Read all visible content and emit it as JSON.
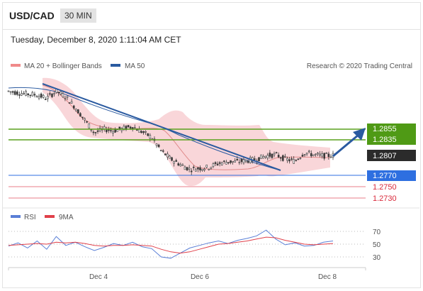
{
  "header": {
    "symbol": "USD/CAD",
    "timeframe": "30 MIN"
  },
  "datetime": "Tuesday, December 8, 2020 1:11:04 AM CET",
  "legend": {
    "ma_bb": "MA 20 + Bollinger Bands",
    "ma50": "MA 50",
    "credit": "Research © 2020 Trading Central"
  },
  "rsi_legend": {
    "rsi": "RSI",
    "ma9": "9MA"
  },
  "colors": {
    "resistance": "#5aa01e",
    "support_main": "#2e6fe0",
    "support_red": "#e0465a",
    "trendline": "#2a5aa0",
    "bollinger": "#f7c5c8",
    "ma20": "#e08a8a",
    "candle": "#3a3a3a",
    "rsi": "#5a7fd6",
    "rsi_ma": "#e0404a"
  },
  "chart_data": [
    {
      "type": "line",
      "title": "USD/CAD 30 MIN",
      "x_ticks": [
        "Dec 4",
        "Dec 6",
        "Dec 8"
      ],
      "price_levels": [
        {
          "label": "1.2855",
          "value": 1.2855,
          "kind": "resistance"
        },
        {
          "label": "1.2835",
          "value": 1.2835,
          "kind": "resistance"
        },
        {
          "label": "1.2807",
          "value": 1.2807,
          "kind": "current"
        },
        {
          "label": "1.2770",
          "value": 1.277,
          "kind": "support"
        },
        {
          "label": "1.2750",
          "value": 1.275,
          "kind": "support"
        },
        {
          "label": "1.2730",
          "value": 1.273,
          "kind": "support"
        }
      ],
      "series": [
        {
          "name": "Price",
          "values": [
            1.2925,
            1.2922,
            1.292,
            1.2918,
            1.2912,
            1.2925,
            1.2915,
            1.2895,
            1.2872,
            1.2848,
            1.2855,
            1.2852,
            1.2856,
            1.286,
            1.285,
            1.284,
            1.2815,
            1.28,
            1.279,
            1.2781,
            1.2783,
            1.2785,
            1.2792,
            1.2795,
            1.2795,
            1.2797,
            1.28,
            1.2806,
            1.2808,
            1.28,
            1.2796,
            1.2812,
            1.2808,
            1.2806,
            1.2807
          ]
        },
        {
          "name": "MA 20",
          "values": []
        },
        {
          "name": "MA 50",
          "values": []
        }
      ]
    },
    {
      "type": "line",
      "title": "RSI",
      "yticks": [
        70,
        50,
        30
      ],
      "series": [
        {
          "name": "RSI",
          "values": [
            47,
            52,
            44,
            55,
            42,
            62,
            48,
            53,
            46,
            40,
            45,
            51,
            48,
            53,
            46,
            43,
            30,
            28,
            36,
            44,
            48,
            52,
            55,
            51,
            56,
            59,
            63,
            72,
            58,
            49,
            52,
            47,
            48,
            53,
            55
          ]
        },
        {
          "name": "9MA",
          "values": [
            48,
            49,
            50,
            51,
            50,
            53,
            52,
            53,
            51,
            48,
            47,
            48,
            48,
            49,
            48,
            47,
            42,
            38,
            36,
            38,
            42,
            46,
            50,
            51,
            53,
            55,
            58,
            61,
            60,
            56,
            53,
            50,
            49,
            50,
            51
          ]
        }
      ]
    }
  ]
}
